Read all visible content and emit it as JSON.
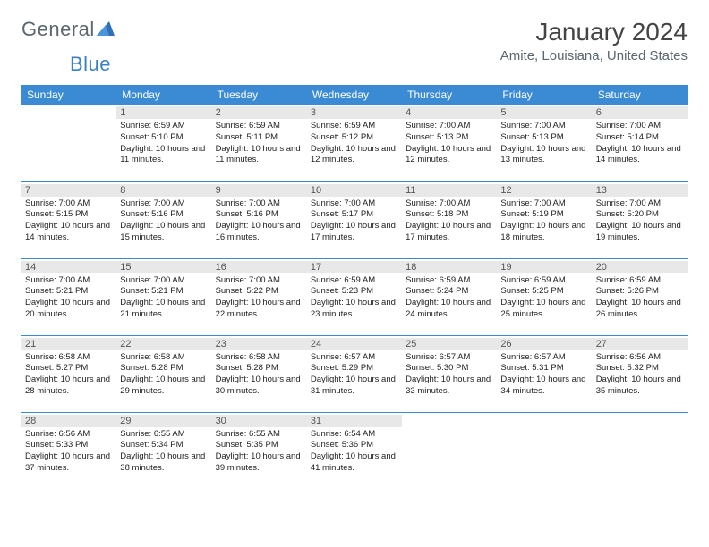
{
  "logo": {
    "text1": "General",
    "text2": "Blue"
  },
  "title": "January 2024",
  "location": "Amite, Louisiana, United States",
  "colors": {
    "header_bg": "#3b8bd4",
    "header_text": "#ffffff",
    "daynum_bg": "#e8e8e8",
    "logo_gray": "#5a6770",
    "logo_blue": "#3b7fc4",
    "row_sep": "#3b8bd4"
  },
  "dayHeaders": [
    "Sunday",
    "Monday",
    "Tuesday",
    "Wednesday",
    "Thursday",
    "Friday",
    "Saturday"
  ],
  "weeks": [
    [
      null,
      {
        "n": "1",
        "sr": "6:59 AM",
        "ss": "5:10 PM",
        "dl": "10 hours and 11 minutes."
      },
      {
        "n": "2",
        "sr": "6:59 AM",
        "ss": "5:11 PM",
        "dl": "10 hours and 11 minutes."
      },
      {
        "n": "3",
        "sr": "6:59 AM",
        "ss": "5:12 PM",
        "dl": "10 hours and 12 minutes."
      },
      {
        "n": "4",
        "sr": "7:00 AM",
        "ss": "5:13 PM",
        "dl": "10 hours and 12 minutes."
      },
      {
        "n": "5",
        "sr": "7:00 AM",
        "ss": "5:13 PM",
        "dl": "10 hours and 13 minutes."
      },
      {
        "n": "6",
        "sr": "7:00 AM",
        "ss": "5:14 PM",
        "dl": "10 hours and 14 minutes."
      }
    ],
    [
      {
        "n": "7",
        "sr": "7:00 AM",
        "ss": "5:15 PM",
        "dl": "10 hours and 14 minutes."
      },
      {
        "n": "8",
        "sr": "7:00 AM",
        "ss": "5:16 PM",
        "dl": "10 hours and 15 minutes."
      },
      {
        "n": "9",
        "sr": "7:00 AM",
        "ss": "5:16 PM",
        "dl": "10 hours and 16 minutes."
      },
      {
        "n": "10",
        "sr": "7:00 AM",
        "ss": "5:17 PM",
        "dl": "10 hours and 17 minutes."
      },
      {
        "n": "11",
        "sr": "7:00 AM",
        "ss": "5:18 PM",
        "dl": "10 hours and 17 minutes."
      },
      {
        "n": "12",
        "sr": "7:00 AM",
        "ss": "5:19 PM",
        "dl": "10 hours and 18 minutes."
      },
      {
        "n": "13",
        "sr": "7:00 AM",
        "ss": "5:20 PM",
        "dl": "10 hours and 19 minutes."
      }
    ],
    [
      {
        "n": "14",
        "sr": "7:00 AM",
        "ss": "5:21 PM",
        "dl": "10 hours and 20 minutes."
      },
      {
        "n": "15",
        "sr": "7:00 AM",
        "ss": "5:21 PM",
        "dl": "10 hours and 21 minutes."
      },
      {
        "n": "16",
        "sr": "7:00 AM",
        "ss": "5:22 PM",
        "dl": "10 hours and 22 minutes."
      },
      {
        "n": "17",
        "sr": "6:59 AM",
        "ss": "5:23 PM",
        "dl": "10 hours and 23 minutes."
      },
      {
        "n": "18",
        "sr": "6:59 AM",
        "ss": "5:24 PM",
        "dl": "10 hours and 24 minutes."
      },
      {
        "n": "19",
        "sr": "6:59 AM",
        "ss": "5:25 PM",
        "dl": "10 hours and 25 minutes."
      },
      {
        "n": "20",
        "sr": "6:59 AM",
        "ss": "5:26 PM",
        "dl": "10 hours and 26 minutes."
      }
    ],
    [
      {
        "n": "21",
        "sr": "6:58 AM",
        "ss": "5:27 PM",
        "dl": "10 hours and 28 minutes."
      },
      {
        "n": "22",
        "sr": "6:58 AM",
        "ss": "5:28 PM",
        "dl": "10 hours and 29 minutes."
      },
      {
        "n": "23",
        "sr": "6:58 AM",
        "ss": "5:28 PM",
        "dl": "10 hours and 30 minutes."
      },
      {
        "n": "24",
        "sr": "6:57 AM",
        "ss": "5:29 PM",
        "dl": "10 hours and 31 minutes."
      },
      {
        "n": "25",
        "sr": "6:57 AM",
        "ss": "5:30 PM",
        "dl": "10 hours and 33 minutes."
      },
      {
        "n": "26",
        "sr": "6:57 AM",
        "ss": "5:31 PM",
        "dl": "10 hours and 34 minutes."
      },
      {
        "n": "27",
        "sr": "6:56 AM",
        "ss": "5:32 PM",
        "dl": "10 hours and 35 minutes."
      }
    ],
    [
      {
        "n": "28",
        "sr": "6:56 AM",
        "ss": "5:33 PM",
        "dl": "10 hours and 37 minutes."
      },
      {
        "n": "29",
        "sr": "6:55 AM",
        "ss": "5:34 PM",
        "dl": "10 hours and 38 minutes."
      },
      {
        "n": "30",
        "sr": "6:55 AM",
        "ss": "5:35 PM",
        "dl": "10 hours and 39 minutes."
      },
      {
        "n": "31",
        "sr": "6:54 AM",
        "ss": "5:36 PM",
        "dl": "10 hours and 41 minutes."
      },
      null,
      null,
      null
    ]
  ],
  "labels": {
    "sunrise": "Sunrise: ",
    "sunset": "Sunset: ",
    "daylight": "Daylight: "
  }
}
